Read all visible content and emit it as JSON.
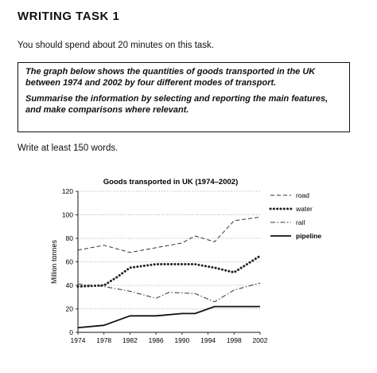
{
  "page": {
    "title": "WRITING TASK 1",
    "instruction": "You should spend about 20 minutes on this task.",
    "task_paragraph_1": "The graph below shows the quantities of goods transported in the UK between 1974 and 2002 by four different modes of transport.",
    "task_paragraph_2": "Summarise the information by selecting and reporting the main features, and make comparisons where relevant.",
    "word_count_note": "Write at least 150 words."
  },
  "chart_data": {
    "type": "line",
    "title": "Goods transported in UK (1974–2002)",
    "xlabel": "",
    "ylabel": "Million tonnes",
    "x": [
      1974,
      1978,
      1982,
      1986,
      1990,
      1994,
      1998,
      2002
    ],
    "ylim": [
      0,
      120
    ],
    "yticks": [
      0,
      20,
      40,
      60,
      80,
      100,
      120
    ],
    "grid": "horizontal-dotted",
    "legend_position": "top-right",
    "series": [
      {
        "name": "road",
        "style": "dashed",
        "color": "#333333",
        "points": [
          [
            1974,
            70
          ],
          [
            1978,
            74
          ],
          [
            1982,
            68
          ],
          [
            1986,
            72
          ],
          [
            1990,
            76
          ],
          [
            1992,
            82
          ],
          [
            1995,
            77
          ],
          [
            1998,
            95
          ],
          [
            2002,
            98
          ]
        ]
      },
      {
        "name": "water",
        "style": "dotted",
        "color": "#222222",
        "points": [
          [
            1974,
            39
          ],
          [
            1978,
            40
          ],
          [
            1980,
            47
          ],
          [
            1982,
            55
          ],
          [
            1986,
            58
          ],
          [
            1990,
            58
          ],
          [
            1992,
            58
          ],
          [
            1995,
            55
          ],
          [
            1998,
            51
          ],
          [
            2002,
            65
          ]
        ]
      },
      {
        "name": "rail",
        "style": "dash-dot",
        "color": "#333333",
        "points": [
          [
            1974,
            41
          ],
          [
            1978,
            39
          ],
          [
            1982,
            35
          ],
          [
            1986,
            29
          ],
          [
            1988,
            34
          ],
          [
            1992,
            33
          ],
          [
            1995,
            26
          ],
          [
            1998,
            36
          ],
          [
            2002,
            42
          ]
        ]
      },
      {
        "name": "pipeline",
        "style": "solid",
        "color": "#111111",
        "points": [
          [
            1974,
            4
          ],
          [
            1978,
            6
          ],
          [
            1982,
            14
          ],
          [
            1986,
            14
          ],
          [
            1990,
            16
          ],
          [
            1992,
            16
          ],
          [
            1995,
            22
          ],
          [
            1998,
            22
          ],
          [
            2002,
            22
          ]
        ]
      }
    ]
  }
}
